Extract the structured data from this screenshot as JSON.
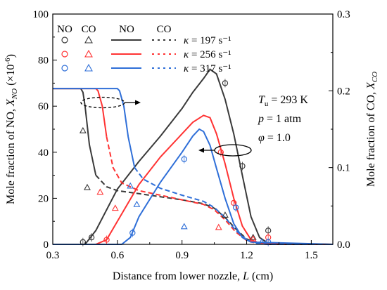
{
  "chart_data": {
    "type": "line",
    "title": "",
    "xlabel": "Distance from lower nozzle, L (cm)",
    "ylabel_left": "Mole fraction of NO, X_NO (×10^-6)",
    "ylabel_right": "Mole fraction of CO, X_CO",
    "xlim": [
      0.3,
      1.6
    ],
    "ylim_left": [
      0,
      100
    ],
    "ylim_right": [
      0,
      0.3
    ],
    "x_ticks": [
      "0.3",
      "0.6",
      "0.9",
      "1.2",
      "1.5"
    ],
    "y_left_ticks": [
      "0",
      "20",
      "40",
      "60",
      "80",
      "100"
    ],
    "y_right_ticks": [
      "0.0",
      "0.1",
      "0.2",
      "0.3"
    ],
    "grid": false,
    "legend": {
      "placement": "top-left",
      "headers": [
        "NO",
        "CO",
        "NO",
        "CO"
      ],
      "kappa_labels": [
        "κ = 197 s⁻¹",
        "κ = 256 s⁻¹",
        "κ = 317 s⁻¹"
      ]
    },
    "conditions": [
      "T_u = 293 K",
      "p = 1 atm",
      "φ = 1.0"
    ],
    "series": [
      {
        "color": "#3a3a3a",
        "no_model": [
          [
            0.3,
            0
          ],
          [
            0.45,
            0
          ],
          [
            0.5,
            6
          ],
          [
            0.6,
            24
          ],
          [
            0.7,
            36
          ],
          [
            0.8,
            47
          ],
          [
            0.9,
            59
          ],
          [
            0.95,
            66
          ],
          [
            1.0,
            72
          ],
          [
            1.03,
            76
          ],
          [
            1.06,
            74
          ],
          [
            1.1,
            63
          ],
          [
            1.14,
            48
          ],
          [
            1.18,
            30
          ],
          [
            1.22,
            12
          ],
          [
            1.26,
            3
          ],
          [
            1.3,
            0.5
          ],
          [
            1.6,
            0
          ]
        ],
        "no_exp": [
          [
            0.44,
            1
          ],
          [
            0.48,
            3
          ],
          [
            1.1,
            70
          ],
          [
            1.18,
            34
          ],
          [
            1.3,
            6
          ]
        ],
        "co_model": [
          [
            0.3,
            0.203
          ],
          [
            0.43,
            0.203
          ],
          [
            0.44,
            0.198
          ],
          [
            0.45,
            0.18
          ],
          [
            0.47,
            0.13
          ],
          [
            0.5,
            0.09
          ],
          [
            0.55,
            0.075
          ],
          [
            0.6,
            0.07
          ],
          [
            0.7,
            0.066
          ],
          [
            0.8,
            0.062
          ],
          [
            0.9,
            0.058
          ],
          [
            1.0,
            0.053
          ],
          [
            1.05,
            0.047
          ],
          [
            1.1,
            0.035
          ],
          [
            1.15,
            0.02
          ],
          [
            1.2,
            0.007
          ],
          [
            1.25,
            0.002
          ],
          [
            1.3,
            0
          ],
          [
            1.6,
            0
          ]
        ],
        "co_exp": [
          [
            0.44,
            0.148
          ],
          [
            0.46,
            0.074
          ],
          [
            1.1,
            0.038
          ],
          [
            1.23,
            0.009
          ]
        ]
      },
      {
        "color": "#ff3333",
        "no_model": [
          [
            0.3,
            0
          ],
          [
            0.5,
            0
          ],
          [
            0.55,
            2
          ],
          [
            0.6,
            10
          ],
          [
            0.7,
            26
          ],
          [
            0.8,
            38
          ],
          [
            0.9,
            48
          ],
          [
            0.95,
            53
          ],
          [
            1.0,
            56
          ],
          [
            1.03,
            55
          ],
          [
            1.06,
            48
          ],
          [
            1.1,
            35
          ],
          [
            1.14,
            20
          ],
          [
            1.18,
            8
          ],
          [
            1.22,
            2
          ],
          [
            1.26,
            0.5
          ],
          [
            1.6,
            0
          ]
        ],
        "no_exp": [
          [
            0.55,
            2
          ],
          [
            1.08,
            40
          ],
          [
            1.14,
            18
          ],
          [
            1.3,
            3
          ]
        ],
        "co_model": [
          [
            0.3,
            0.203
          ],
          [
            0.5,
            0.203
          ],
          [
            0.51,
            0.2
          ],
          [
            0.53,
            0.18
          ],
          [
            0.55,
            0.14
          ],
          [
            0.58,
            0.1
          ],
          [
            0.62,
            0.08
          ],
          [
            0.7,
            0.07
          ],
          [
            0.8,
            0.064
          ],
          [
            0.9,
            0.058
          ],
          [
            1.0,
            0.052
          ],
          [
            1.05,
            0.045
          ],
          [
            1.1,
            0.032
          ],
          [
            1.15,
            0.016
          ],
          [
            1.2,
            0.005
          ],
          [
            1.25,
            0.001
          ],
          [
            1.3,
            0
          ],
          [
            1.6,
            0
          ]
        ],
        "co_exp": [
          [
            0.52,
            0.068
          ],
          [
            0.59,
            0.047
          ],
          [
            1.07,
            0.022
          ],
          [
            1.23,
            0.007
          ]
        ]
      },
      {
        "color": "#2f6fd8",
        "no_model": [
          [
            0.3,
            0
          ],
          [
            0.62,
            0
          ],
          [
            0.66,
            3
          ],
          [
            0.7,
            12
          ],
          [
            0.8,
            27
          ],
          [
            0.9,
            40
          ],
          [
            0.95,
            47
          ],
          [
            0.98,
            50
          ],
          [
            1.0,
            49
          ],
          [
            1.03,
            43
          ],
          [
            1.06,
            33
          ],
          [
            1.1,
            20
          ],
          [
            1.14,
            9
          ],
          [
            1.18,
            3
          ],
          [
            1.22,
            1
          ],
          [
            1.6,
            0
          ]
        ],
        "no_exp": [
          [
            0.67,
            5
          ],
          [
            0.91,
            37
          ],
          [
            1.15,
            16
          ],
          [
            1.3,
            1
          ]
        ],
        "co_model": [
          [
            0.3,
            0.203
          ],
          [
            0.6,
            0.203
          ],
          [
            0.61,
            0.2
          ],
          [
            0.63,
            0.18
          ],
          [
            0.65,
            0.14
          ],
          [
            0.68,
            0.1
          ],
          [
            0.72,
            0.085
          ],
          [
            0.8,
            0.073
          ],
          [
            0.9,
            0.064
          ],
          [
            1.0,
            0.056
          ],
          [
            1.05,
            0.048
          ],
          [
            1.1,
            0.035
          ],
          [
            1.15,
            0.018
          ],
          [
            1.2,
            0.006
          ],
          [
            1.25,
            0.001
          ],
          [
            1.3,
            0
          ],
          [
            1.6,
            0
          ]
        ],
        "co_exp": [
          [
            0.66,
            0.076
          ],
          [
            0.69,
            0.052
          ],
          [
            0.91,
            0.023
          ],
          [
            1.27,
            0.003
          ]
        ]
      }
    ]
  }
}
